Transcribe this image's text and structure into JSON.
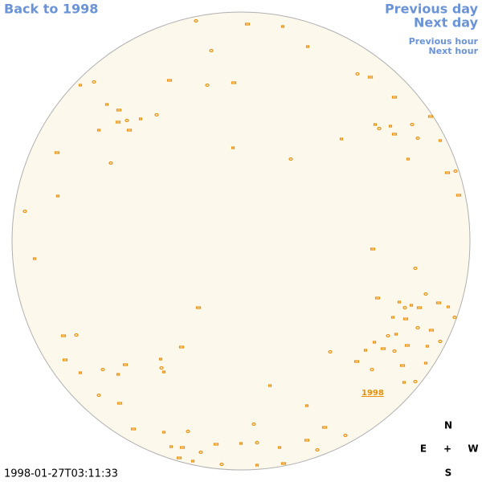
{
  "nav": {
    "back": "Back to 1998",
    "previous_day": "Previous day",
    "next_day": "Next day",
    "previous_hour": "Previous hour",
    "next_hour": "Next hour"
  },
  "disk": {
    "region_label": "1998"
  },
  "compass": {
    "north": "N",
    "east": "E",
    "center": "+",
    "west": "W",
    "south": "S"
  },
  "timestamp": "1998-01-27T03:11:33"
}
